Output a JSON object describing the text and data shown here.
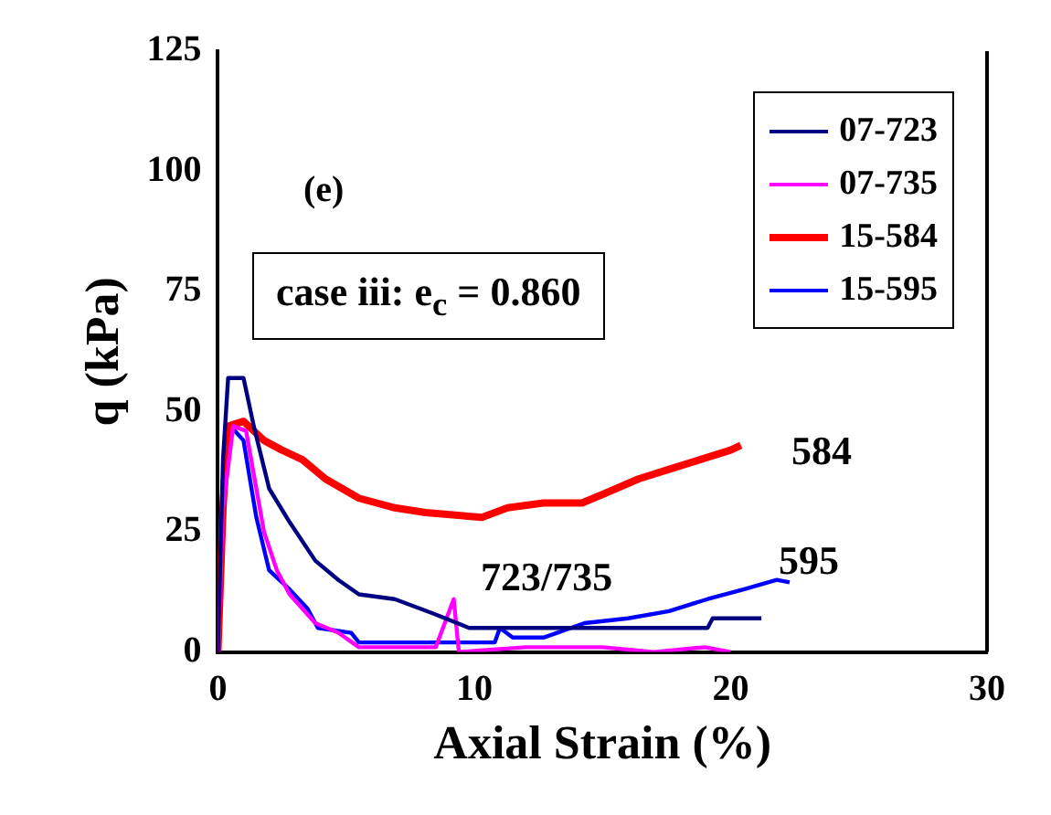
{
  "chart_data": {
    "type": "line",
    "xlabel": "Axial Strain (%)",
    "ylabel": "q (kPa)",
    "xlim": [
      0,
      30
    ],
    "xticks": [
      0,
      10,
      20,
      30
    ],
    "ylim": [
      0,
      125
    ],
    "yticks": [
      0,
      25,
      50,
      75,
      100,
      125
    ],
    "grid": false,
    "legend": "top right",
    "marker": "none",
    "line_style": "solid",
    "series": [
      {
        "name": "07-723",
        "color": "#000080",
        "x": [
          0,
          0.2,
          0.4,
          1.0,
          1.4,
          2.0,
          2.8,
          3.8,
          4.7,
          5.5,
          6.9,
          8.4,
          9.8,
          12,
          14,
          16,
          19.1,
          19.3,
          21.2
        ],
        "values": [
          0,
          40,
          57,
          57,
          47,
          34,
          27,
          19,
          15,
          12,
          11,
          8,
          5,
          5,
          5,
          5,
          5,
          7,
          7
        ]
      },
      {
        "name": "07-735",
        "color": "#ff00ff",
        "x": [
          0,
          0.2,
          0.6,
          1.1,
          1.8,
          2.3,
          2.8,
          3.8,
          4.7,
          5.5,
          7,
          8.5,
          9.2,
          9.4,
          12,
          15,
          17,
          19,
          20
        ],
        "values": [
          0,
          30,
          47,
          46,
          25,
          17,
          12,
          6,
          4,
          1,
          1,
          1,
          11,
          0,
          1,
          1,
          0,
          1,
          0
        ]
      },
      {
        "name": "15-584",
        "color": "#ff0000",
        "x": [
          0,
          0.2,
          0.4,
          1.0,
          1.8,
          2.5,
          3.3,
          4.2,
          5.5,
          6.9,
          8.1,
          10.3,
          11.3,
          12.7,
          14.2,
          15.1,
          16.4,
          17.6,
          18.8,
          20,
          20.4
        ],
        "values": [
          0,
          30,
          47,
          48,
          44,
          42,
          40,
          36,
          32,
          30,
          29,
          28,
          30,
          31,
          31,
          33,
          36,
          38,
          40,
          42,
          43
        ]
      },
      {
        "name": "15-595",
        "color": "#0000ff",
        "x": [
          0,
          0.2,
          0.5,
          1.0,
          1.5,
          2.0,
          2.8,
          3.5,
          3.9,
          5.2,
          5.5,
          8,
          10.8,
          11,
          11.5,
          12.7,
          14.3,
          16,
          17.6,
          19.1,
          20.5,
          21.8,
          22.3
        ],
        "values": [
          0,
          30,
          47,
          44,
          28,
          17,
          13,
          9,
          5,
          4,
          2,
          2,
          2,
          5,
          3,
          3,
          6,
          7,
          8.5,
          11,
          13,
          15,
          14.5
        ]
      }
    ],
    "annotations": [
      "(e)",
      "case iii: e$_{c}$ = 0.860",
      "584",
      "595",
      "723/735"
    ]
  }
}
